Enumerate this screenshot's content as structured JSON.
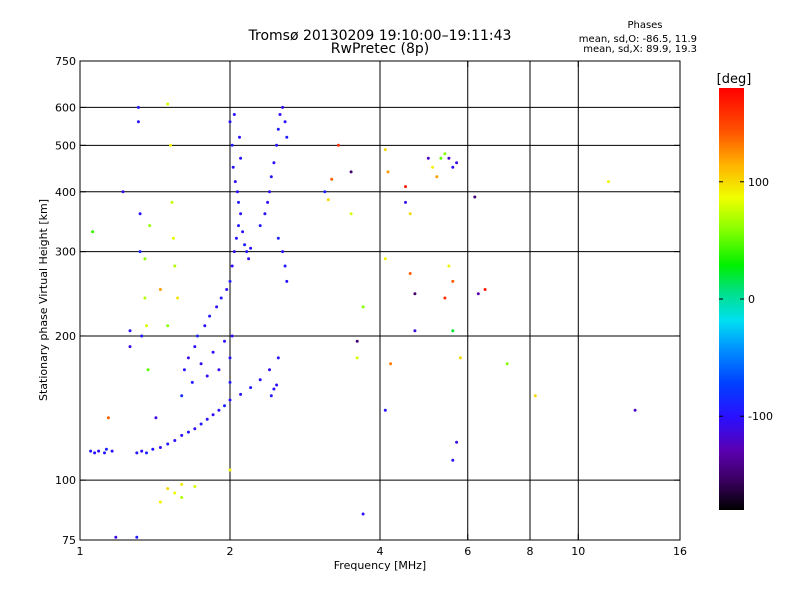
{
  "chart_data": {
    "type": "scatter",
    "title": "Tromsø 20130209 19:10:00–19:11:43",
    "subtitle": "RwPretec (8p)",
    "xlabel": "Frequency [MHz]",
    "ylabel": "Stationary phase Virtual Height [km]",
    "x_scale": "log",
    "y_scale": "log",
    "xlim": [
      1,
      16
    ],
    "ylim": [
      75,
      750
    ],
    "x_ticks": [
      1,
      2,
      4,
      6,
      8,
      10,
      16
    ],
    "y_ticks": [
      75,
      100,
      200,
      300,
      400,
      500,
      600,
      750
    ],
    "x_gridlines": [
      2,
      4,
      6,
      8,
      10
    ],
    "y_gridlines": [
      100,
      200,
      300,
      400,
      500,
      600
    ],
    "grid": true,
    "legend": {
      "title": "Phases",
      "line1": "mean, sd,O:  -86.5, 11.9",
      "line2": "mean, sd,X:  89.9, 19.3"
    },
    "colorbar": {
      "label": "[deg]",
      "range": [
        -180,
        180
      ],
      "ticks": [
        100,
        0,
        -100
      ]
    },
    "series": [
      {
        "points": [
          [
            1.05,
            115,
            -95
          ],
          [
            1.07,
            114,
            -100
          ],
          [
            1.09,
            115,
            -105
          ],
          [
            1.12,
            114,
            -95
          ],
          [
            1.16,
            115,
            -100
          ],
          [
            1.13,
            116,
            -90
          ],
          [
            1.3,
            114,
            -95
          ],
          [
            1.33,
            115,
            -100
          ],
          [
            1.36,
            114,
            -92
          ],
          [
            1.4,
            116,
            -98
          ],
          [
            1.45,
            117,
            -100
          ],
          [
            1.5,
            119,
            -95
          ],
          [
            1.55,
            121,
            -102
          ],
          [
            1.6,
            124,
            -100
          ],
          [
            1.65,
            126,
            -97
          ],
          [
            1.7,
            128,
            -100
          ],
          [
            1.75,
            131,
            -95
          ],
          [
            1.8,
            134,
            -100
          ],
          [
            1.85,
            137,
            -105
          ],
          [
            1.9,
            140,
            -100
          ],
          [
            1.95,
            143,
            -92
          ],
          [
            2.0,
            147,
            -100
          ],
          [
            2.1,
            151,
            -98
          ],
          [
            2.2,
            156,
            -95
          ],
          [
            2.3,
            162,
            -100
          ],
          [
            2.4,
            170,
            -105
          ],
          [
            2.5,
            180,
            -100
          ],
          [
            1.6,
            150,
            -85
          ],
          [
            1.62,
            170,
            -100
          ],
          [
            1.65,
            180,
            -110
          ],
          [
            1.68,
            160,
            -95
          ],
          [
            1.7,
            190,
            -100
          ],
          [
            1.72,
            200,
            -90
          ],
          [
            1.75,
            175,
            -105
          ],
          [
            1.78,
            210,
            -100
          ],
          [
            1.8,
            165,
            -100
          ],
          [
            1.82,
            220,
            -95
          ],
          [
            1.85,
            185,
            -100
          ],
          [
            1.88,
            230,
            -100
          ],
          [
            1.9,
            170,
            -110
          ],
          [
            1.92,
            240,
            -95
          ],
          [
            1.95,
            195,
            -100
          ],
          [
            1.97,
            250,
            -100
          ],
          [
            2.0,
            260,
            -95
          ],
          [
            2.02,
            280,
            -100
          ],
          [
            2.04,
            300,
            -105
          ],
          [
            2.06,
            320,
            -100
          ],
          [
            2.08,
            340,
            -95
          ],
          [
            2.1,
            360,
            -100
          ],
          [
            2.12,
            330,
            -100
          ],
          [
            2.14,
            310,
            -92
          ],
          [
            2.16,
            300,
            -100
          ],
          [
            2.18,
            290,
            -105
          ],
          [
            2.2,
            305,
            -100
          ],
          [
            2.0,
            560,
            -100
          ],
          [
            2.02,
            500,
            -95
          ],
          [
            2.03,
            450,
            -100
          ],
          [
            2.05,
            420,
            -105
          ],
          [
            2.07,
            400,
            -100
          ],
          [
            2.08,
            380,
            -95
          ],
          [
            2.09,
            520,
            -100
          ],
          [
            2.1,
            470,
            -100
          ],
          [
            2.04,
            580,
            -98
          ],
          [
            2.0,
            180,
            -100
          ],
          [
            2.0,
            160,
            -95
          ],
          [
            2.02,
            200,
            -100
          ],
          [
            2.3,
            340,
            -95
          ],
          [
            2.35,
            360,
            -100
          ],
          [
            2.38,
            380,
            -105
          ],
          [
            2.4,
            400,
            -100
          ],
          [
            2.42,
            430,
            -95
          ],
          [
            2.45,
            460,
            -100
          ],
          [
            2.48,
            500,
            -100
          ],
          [
            2.5,
            540,
            -95
          ],
          [
            2.52,
            580,
            -100
          ],
          [
            2.55,
            600,
            -105
          ],
          [
            2.58,
            560,
            -100
          ],
          [
            2.6,
            520,
            -95
          ],
          [
            2.55,
            300,
            -100
          ],
          [
            2.58,
            280,
            -95
          ],
          [
            2.6,
            260,
            -100
          ],
          [
            2.5,
            320,
            -90
          ],
          [
            2.42,
            150,
            -95
          ],
          [
            2.45,
            155,
            -100
          ],
          [
            2.48,
            158,
            -100
          ],
          [
            1.31,
            600,
            -95
          ],
          [
            1.31,
            560,
            -100
          ],
          [
            1.32,
            360,
            -100
          ],
          [
            1.32,
            300,
            -90
          ],
          [
            1.33,
            200,
            -95
          ],
          [
            1.35,
            290,
            60
          ],
          [
            1.35,
            240,
            70
          ],
          [
            1.36,
            210,
            80
          ],
          [
            1.37,
            170,
            50
          ],
          [
            1.38,
            340,
            65
          ],
          [
            1.5,
            610,
            80
          ],
          [
            1.52,
            500,
            90
          ],
          [
            1.53,
            380,
            75
          ],
          [
            1.54,
            320,
            85
          ],
          [
            1.55,
            280,
            70
          ],
          [
            1.57,
            240,
            95
          ],
          [
            1.5,
            210,
            60
          ],
          [
            1.45,
            90,
            90
          ],
          [
            1.5,
            96,
            100
          ],
          [
            1.55,
            94,
            85
          ],
          [
            1.6,
            98,
            95
          ],
          [
            1.6,
            92,
            70
          ],
          [
            1.7,
            97,
            80
          ],
          [
            2.0,
            105,
            90
          ],
          [
            1.06,
            330,
            40
          ],
          [
            1.14,
            135,
            140
          ],
          [
            1.22,
            400,
            -110
          ],
          [
            1.26,
            190,
            -110
          ],
          [
            1.26,
            205,
            -100
          ],
          [
            1.42,
            135,
            -110
          ],
          [
            1.45,
            250,
            120
          ],
          [
            3.1,
            400,
            -90
          ],
          [
            3.15,
            385,
            100
          ],
          [
            3.2,
            425,
            140
          ],
          [
            3.3,
            500,
            160
          ],
          [
            3.5,
            440,
            -150
          ],
          [
            3.5,
            360,
            80
          ],
          [
            3.6,
            195,
            -150
          ],
          [
            3.6,
            180,
            80
          ],
          [
            3.7,
            230,
            60
          ],
          [
            4.1,
            490,
            100
          ],
          [
            4.15,
            440,
            120
          ],
          [
            4.1,
            290,
            90
          ],
          [
            4.2,
            175,
            130
          ],
          [
            4.1,
            140,
            -100
          ],
          [
            4.5,
            410,
            170
          ],
          [
            4.5,
            380,
            -110
          ],
          [
            4.6,
            360,
            100
          ],
          [
            4.6,
            270,
            140
          ],
          [
            4.7,
            245,
            -150
          ],
          [
            4.7,
            205,
            -110
          ],
          [
            5.0,
            470,
            -120
          ],
          [
            5.1,
            450,
            90
          ],
          [
            5.2,
            430,
            120
          ],
          [
            5.3,
            470,
            50
          ],
          [
            5.4,
            480,
            60
          ],
          [
            5.5,
            470,
            -120
          ],
          [
            5.6,
            450,
            -100
          ],
          [
            5.7,
            460,
            -110
          ],
          [
            5.5,
            280,
            90
          ],
          [
            5.6,
            260,
            140
          ],
          [
            5.6,
            205,
            20
          ],
          [
            5.4,
            240,
            160
          ],
          [
            5.6,
            110,
            -100
          ],
          [
            5.7,
            120,
            -110
          ],
          [
            5.8,
            180,
            100
          ],
          [
            6.2,
            390,
            -150
          ],
          [
            6.3,
            245,
            -130
          ],
          [
            6.5,
            250,
            170
          ],
          [
            7.2,
            175,
            60
          ],
          [
            8.2,
            150,
            100
          ],
          [
            11.5,
            420,
            90
          ],
          [
            13.0,
            140,
            -120
          ],
          [
            3.7,
            85,
            -100
          ],
          [
            1.18,
            76,
            -110
          ],
          [
            1.3,
            76,
            -95
          ]
        ]
      }
    ]
  }
}
